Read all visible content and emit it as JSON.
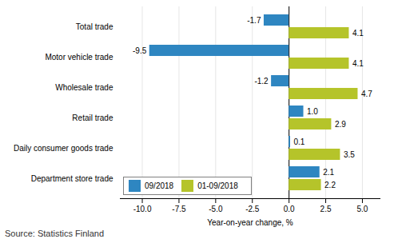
{
  "chart_data": {
    "type": "bar",
    "orientation": "horizontal",
    "categories": [
      "Total trade",
      "Motor vehicle trade",
      "Wholesale trade",
      "Retail trade",
      "Daily consumer goods trade",
      "Department store trade"
    ],
    "series": [
      {
        "name": "09/2018",
        "color": "#2e86c1",
        "values": [
          -1.7,
          -9.5,
          -1.2,
          1.0,
          0.1,
          2.1
        ],
        "value_labels": [
          "-1.7",
          "-9.5",
          "-1.2",
          "1.0",
          "0.1",
          "2.1"
        ]
      },
      {
        "name": "01-09/2018",
        "color": "#b5c42a",
        "values": [
          4.1,
          4.1,
          4.7,
          2.9,
          3.5,
          2.2
        ]
      }
    ],
    "xlabel": "Year-on-year change, %",
    "xlim": [
      -11.5,
      6.2
    ],
    "xticks": [
      {
        "value": -10.0,
        "label": "-10.0"
      },
      -7.5,
      {
        "value": -5.0,
        "label": "-5.0"
      },
      -2.5,
      {
        "value": 0.0,
        "label": "0.0"
      },
      2.5,
      {
        "value": 5.0,
        "label": "5.0"
      }
    ],
    "grid": true,
    "legend": "lower left",
    "data_labels": true,
    "caption": "Source: Statistics Finland"
  }
}
